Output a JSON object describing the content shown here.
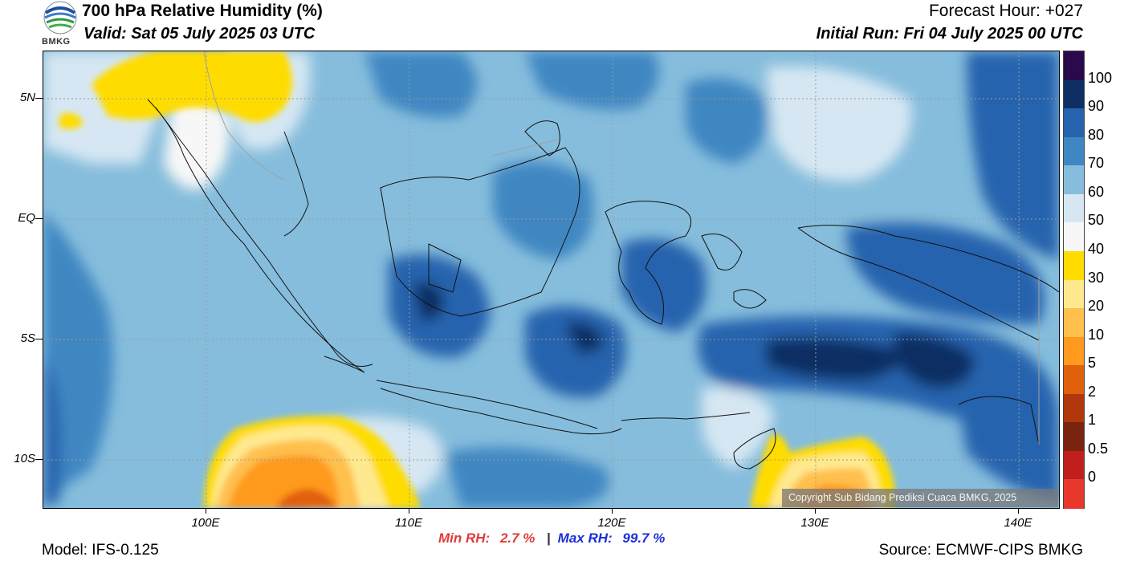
{
  "header": {
    "title": "700 hPa Relative Humidity (%)",
    "valid": "Valid: Sat 05 July 2025 03 UTC",
    "forecast_hour": "Forecast Hour: +027",
    "initial_run": "Initial Run: Fri 04 July 2025 00 UTC"
  },
  "logo": {
    "text": "BMKG",
    "icon": "bmkg-logo-icon"
  },
  "map": {
    "lat_labels": [
      "5N",
      "EQ",
      "5S",
      "10S"
    ],
    "lon_labels": [
      "100E",
      "110E",
      "120E",
      "130E",
      "140E"
    ],
    "lat_range": [
      -12,
      7
    ],
    "lon_range": [
      92,
      142
    ],
    "copyright": "Copyright Sub Bidang Prediksi Cuaca BMKG, 2025"
  },
  "colorbar": {
    "labels": [
      "100",
      "90",
      "80",
      "70",
      "60",
      "50",
      "40",
      "30",
      "20",
      "10",
      "5",
      "2",
      "1",
      "0.5",
      "0"
    ],
    "colors": [
      "#2a0a4a",
      "#0e2f63",
      "#2563ae",
      "#3f87c2",
      "#86bddc",
      "#d6e7f3",
      "#f7f7f7",
      "#ffdc00",
      "#ffe98f",
      "#ffc04d",
      "#ff9a1f",
      "#e0600c",
      "#b0380c",
      "#7a2410",
      "#c0201c",
      "#e8382c"
    ]
  },
  "stats": {
    "min_label": "Min RH:",
    "min_value": "2.7 %",
    "separator": "|",
    "max_label": "Max RH:",
    "max_value": "99.7 %"
  },
  "footer": {
    "model": "Model: IFS-0.125",
    "source": "Source: ECMWF-CIPS BMKG"
  }
}
